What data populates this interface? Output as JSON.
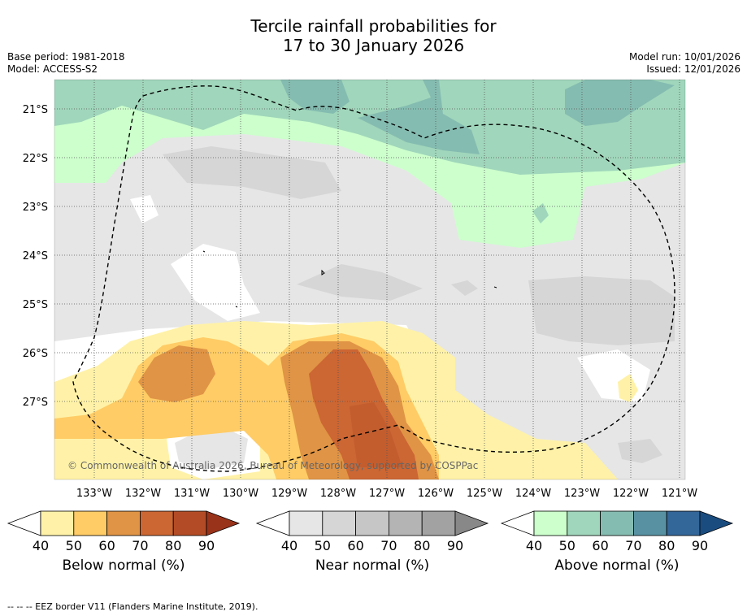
{
  "title_line1": "Tercile rainfall probabilities for",
  "title_line2": "17 to 30 January 2026",
  "meta_left": [
    "Base period: 1981-2018",
    "Model: ACCESS-S2"
  ],
  "meta_right": [
    "Model run: 10/01/2026",
    "Issued: 12/01/2026"
  ],
  "copyright": "© Commonwealth of Australia 2026, Bureau of Meteorology, supported by COSPPac",
  "footnote": "--  --  -- EEZ border V11 (Flanders Marine Institute, 2019).",
  "chart_data": {
    "type": "heatmap",
    "title": "Tercile rainfall probabilities for 17 to 30 January 2026",
    "x_ticks": [
      "133°W",
      "132°W",
      "131°W",
      "130°W",
      "129°W",
      "128°W",
      "127°W",
      "126°W",
      "125°W",
      "124°W",
      "123°W",
      "122°W",
      "121°W"
    ],
    "x_values": [
      -133,
      -132,
      -131,
      -130,
      -129,
      -128,
      -127,
      -126,
      -125,
      -124,
      -123,
      -122,
      -121
    ],
    "y_ticks": [
      "21°S",
      "22°S",
      "23°S",
      "24°S",
      "25°S",
      "26°S",
      "27°S"
    ],
    "y_values": [
      -21,
      -22,
      -23,
      -24,
      -25,
      -26,
      -27
    ],
    "xlim": [
      -133.8,
      -120.9
    ],
    "ylim": [
      -28.6,
      -20.4
    ],
    "grid": true,
    "colorbars": [
      {
        "label": "Below normal (%)",
        "ticks": [
          "40",
          "50",
          "60",
          "70",
          "80",
          "90"
        ],
        "colors": [
          "#fff2a8",
          "#ffcc66",
          "#e09445",
          "#cc6633",
          "#b34c26",
          "#99331a"
        ]
      },
      {
        "label": "Near normal (%)",
        "ticks": [
          "40",
          "50",
          "60",
          "70",
          "80",
          "90"
        ],
        "colors": [
          "#e6e6e6",
          "#d6d6d6",
          "#c6c6c6",
          "#b4b4b4",
          "#a2a2a2",
          "#888888"
        ]
      },
      {
        "label": "Above normal (%)",
        "ticks": [
          "40",
          "50",
          "60",
          "70",
          "80",
          "90"
        ],
        "colors": [
          "#ccffcc",
          "#a0d6bb",
          "#85bcb1",
          "#5892a2",
          "#336699",
          "#1a4c80"
        ]
      }
    ],
    "annotation": "EEZ border (dashed line)"
  }
}
